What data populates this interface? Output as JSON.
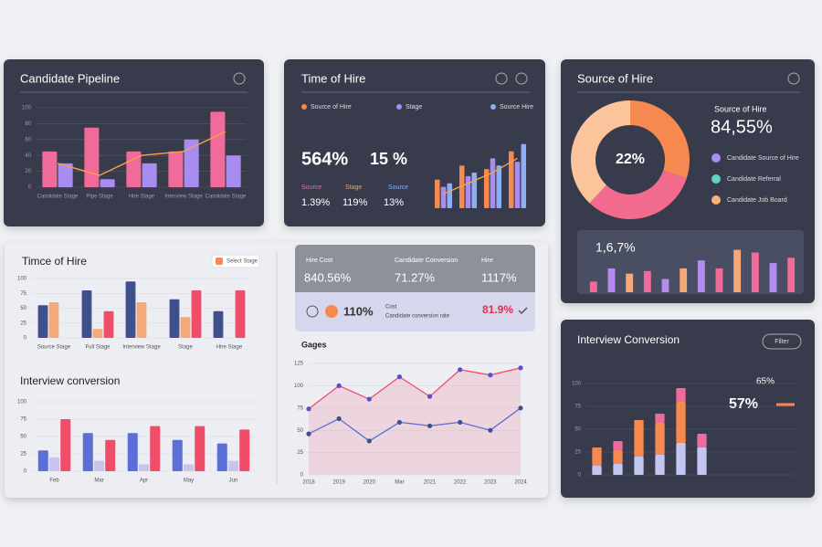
{
  "chart_data": [
    {
      "type": "bar",
      "title": "Candidate Pipeline",
      "categories": [
        "Candidate Stage",
        "Pipe Stage",
        "Hire Stage",
        "Interview Stage",
        "Candidate Stage"
      ],
      "ylim": [
        0,
        100
      ],
      "yticks": [
        0,
        20,
        40,
        60,
        80,
        100
      ],
      "series": [
        {
          "color": "#f06a9a",
          "values": [
            45,
            75,
            45,
            45,
            95
          ]
        },
        {
          "color": "#a98cf0",
          "values": [
            30,
            10,
            30,
            60,
            40
          ]
        },
        {
          "kind": "line",
          "color": "#f7a24a",
          "values": [
            30,
            15,
            40,
            45,
            70
          ]
        }
      ]
    },
    {
      "type": "bar",
      "title": "Time of Hire",
      "categories": [
        null,
        null,
        null,
        null
      ],
      "ylim": [
        0,
        100
      ],
      "series": [
        {
          "name": "Source of Hire",
          "color": "#f5894f",
          "values": [
            40,
            60,
            55,
            80
          ]
        },
        {
          "name": "Stage",
          "color": "#a98cf0",
          "values": [
            30,
            45,
            70,
            65
          ]
        },
        {
          "name": "Source Hire",
          "color": "#8eaef5",
          "values": [
            35,
            50,
            60,
            90
          ]
        },
        {
          "kind": "line",
          "color": "#f7a24a",
          "values": [
            20,
            35,
            50,
            70
          ]
        }
      ],
      "kpis": [
        "564%",
        "15 %"
      ],
      "stats": [
        {
          "label": "Source",
          "value": "1.39%"
        },
        {
          "label": "Stage",
          "value": "119%"
        },
        {
          "label": "Source",
          "value": "13%"
        }
      ]
    },
    {
      "type": "pie",
      "title": "Source of Hire",
      "values": [
        30,
        32,
        38
      ],
      "colors": [
        "#f5894f",
        "#f26a8d",
        "#fbc49a"
      ],
      "center_label": "22%",
      "heading": "Source of Hire",
      "headline": "84,55%",
      "categories": [
        "Candidate Source of Hire",
        "Candidate Referral",
        "Candidate Job Board"
      ],
      "legend_colors": [
        "#a98cf0",
        "#5fd3c8",
        "#fbb07a"
      ],
      "bars": {
        "label": "1,6,7%",
        "ylim": [
          0,
          100
        ],
        "values": [
          20,
          45,
          35,
          40,
          25,
          45,
          60,
          45,
          80,
          75,
          55,
          65
        ],
        "colors": [
          "#f06a9a",
          "#b48cf0",
          "#f5a878",
          "#f06a9a",
          "#b48cf0",
          "#f5a878",
          "#b48cf0",
          "#f06a9a",
          "#f5a878",
          "#f06a9a",
          "#b48cf0",
          "#f06a9a"
        ]
      }
    },
    {
      "type": "bar",
      "title": "Timce of Hire",
      "badge": "Select Stage",
      "categories": [
        "Source Stage",
        "Full Stage",
        "Interview Stage",
        "Stage",
        "Hire Stage"
      ],
      "ylim": [
        0,
        100
      ],
      "yticks": [
        0,
        25,
        50,
        75,
        100
      ],
      "series": [
        {
          "color": "#3f4f8c",
          "values": [
            55,
            80,
            95,
            65,
            45
          ]
        },
        {
          "color": "#f5a878",
          "values": [
            60,
            15,
            60,
            35,
            0
          ]
        },
        {
          "color": "#f04d6a",
          "values": [
            0,
            45,
            0,
            80,
            80
          ]
        }
      ]
    },
    {
      "type": "bar",
      "title": "Interview conversion",
      "categories": [
        "Feb",
        "Mar",
        "Apr",
        "May",
        "Jun"
      ],
      "ylim": [
        0,
        100
      ],
      "yticks": [
        0,
        25,
        50,
        75,
        100
      ],
      "series": [
        {
          "color": "#5b6fd6",
          "values": [
            30,
            55,
            55,
            45,
            40
          ]
        },
        {
          "color": "#c9c4ee",
          "values": [
            20,
            15,
            10,
            10,
            15
          ]
        },
        {
          "color": "#f04d6a",
          "values": [
            75,
            45,
            65,
            65,
            60
          ]
        }
      ]
    },
    {
      "type": "line",
      "title": "Gages",
      "categories": [
        "2018",
        "2019",
        "2020",
        "Mar",
        "2021",
        "2022",
        "2023",
        "2024"
      ],
      "ylim": [
        0,
        125
      ],
      "yticks": [
        0,
        25,
        50,
        75,
        100,
        125
      ],
      "series": [
        {
          "color": "#f04d6a",
          "point_color": "#5b4fc4",
          "area": true,
          "values": [
            74,
            100,
            85,
            110,
            88,
            118,
            112,
            120
          ]
        },
        {
          "color": "#5b6fd6",
          "point_color": "#3f4f8c",
          "values": [
            46,
            63,
            38,
            59,
            55,
            59,
            50,
            75
          ]
        }
      ],
      "headers": [
        "Hire Cost",
        "Candidate Conversion",
        "Hire"
      ],
      "kpis": [
        "840.56%",
        "71.27%",
        "1117%"
      ],
      "row": [
        "110%",
        "Cost",
        "Candidate conversion rate",
        "81.9%"
      ]
    },
    {
      "type": "bar",
      "stacked": true,
      "title": "Interview Conversion",
      "badge": "Filter",
      "categories": [
        null,
        null,
        null,
        null,
        null,
        null
      ],
      "ylim": [
        0,
        100
      ],
      "yticks": [
        0,
        25,
        50,
        75,
        100
      ],
      "kpis": [
        "65%",
        "57%"
      ],
      "series": [
        {
          "color": "#c3c6f0",
          "values": [
            10,
            12,
            20,
            22,
            35,
            30
          ]
        },
        {
          "color": "#f5894f",
          "values": [
            20,
            15,
            40,
            35,
            45,
            0
          ]
        },
        {
          "color": "#f06a9a",
          "values": [
            0,
            10,
            0,
            10,
            15,
            15
          ]
        }
      ]
    }
  ]
}
